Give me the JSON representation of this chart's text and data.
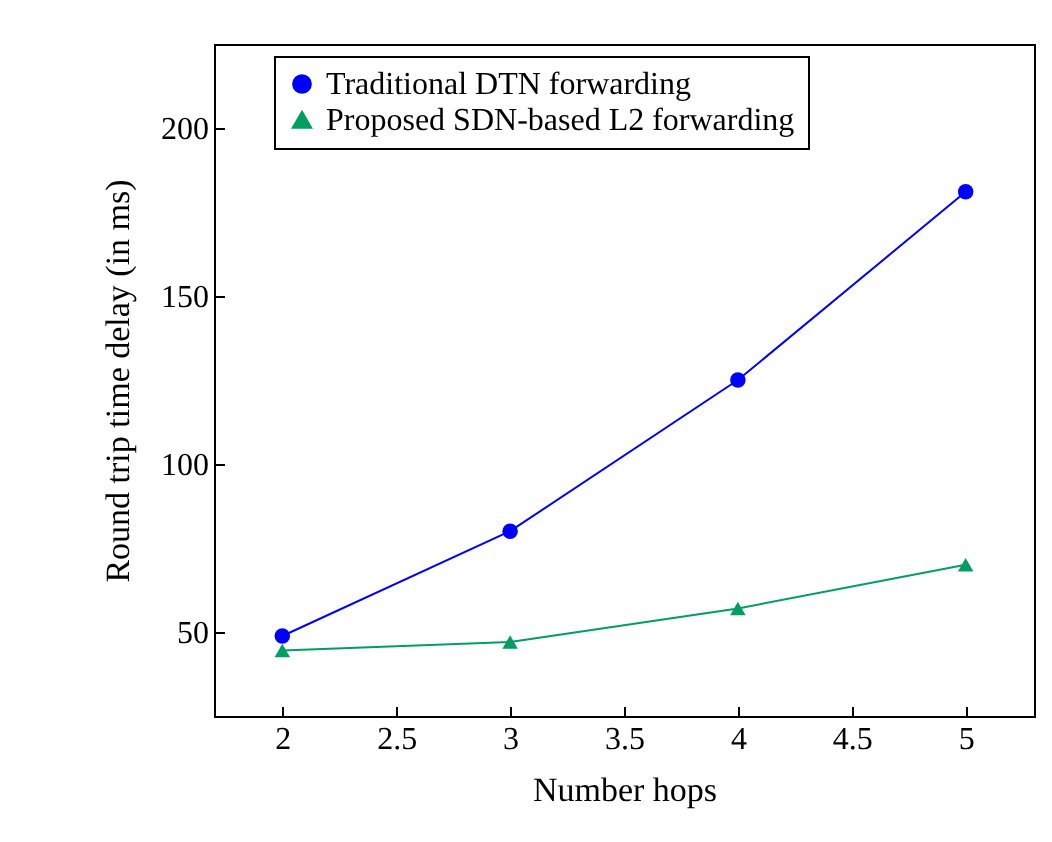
{
  "chart_data": {
    "type": "line",
    "xlabel": "Number hops",
    "ylabel": "Round trip time delay (in ms)",
    "x": [
      2,
      3,
      4,
      5
    ],
    "series": [
      {
        "name": "Traditional DTN forwarding",
        "color": "#0000ff",
        "marker": "circle",
        "values": [
          48.8,
          80,
          125,
          181
        ]
      },
      {
        "name": "Proposed SDN-based L2 forwarding",
        "color": "#009e60",
        "marker": "triangle",
        "values": [
          44.5,
          47,
          57,
          70
        ]
      }
    ],
    "xlim": [
      1.7,
      5.3
    ],
    "xticks": [
      {
        "value": 2,
        "label": "2"
      },
      2.5,
      {
        "value": 3,
        "label": "3"
      },
      3.5,
      {
        "value": 4,
        "label": "4"
      },
      4.5,
      {
        "value": 5,
        "label": "5"
      }
    ],
    "ylim": [
      25,
      225
    ],
    "yticks": [
      50,
      100,
      150,
      200
    ],
    "grid": false,
    "legend": "top"
  }
}
